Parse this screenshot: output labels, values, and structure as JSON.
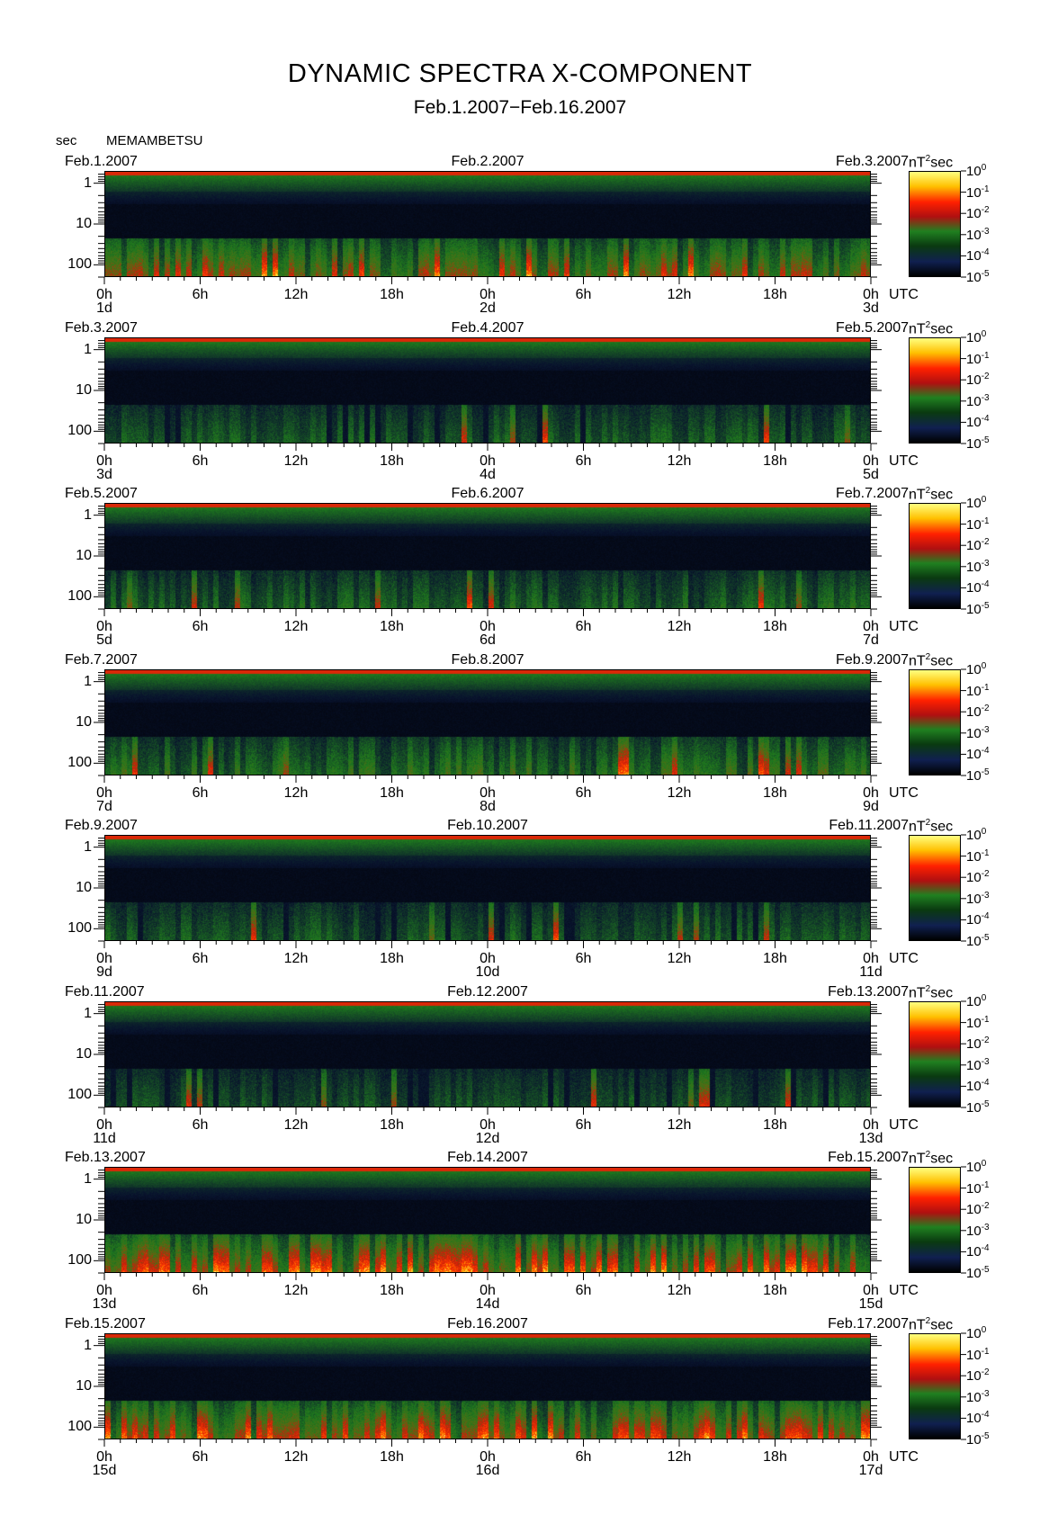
{
  "title": "DYNAMIC SPECTRA X-COMPONENT",
  "subtitle": "Feb.1.2007−Feb.16.2007",
  "station": "MEMAMBETSU",
  "y_unit": "sec",
  "colorbar_unit_main": "nT",
  "colorbar_unit_sup": "2",
  "colorbar_unit_tail": "sec",
  "time_unit": "UTC",
  "chart_data": {
    "type": "heatmap",
    "title": "DYNAMIC SPECTRA X-COMPONENT",
    "subtitle": "Feb.1.2007−Feb.16.2007",
    "ylabel": "sec",
    "y_scale": "log",
    "y_ticks": [
      "1",
      "10",
      "100"
    ],
    "x_ticks": [
      "0h",
      "6h",
      "12h",
      "18h",
      "0h",
      "6h",
      "12h",
      "18h",
      "0h"
    ],
    "colorbar": {
      "label": "nT²sec",
      "ticks": [
        "10^0",
        "10^-1",
        "10^-2",
        "10^-3",
        "10^-4",
        "10^-5"
      ],
      "colors": [
        "#ffff80",
        "#ffc000",
        "#ff2000",
        "#b01010",
        "#208020",
        "#0a3a10",
        "#102050",
        "#000000"
      ]
    },
    "panels": [
      {
        "dates": [
          "Feb.1.2007",
          "Feb.2.2007",
          "Feb.3.2007"
        ],
        "days": [
          "1d",
          "2d",
          "3d"
        ],
        "activity": 0.75
      },
      {
        "dates": [
          "Feb.3.2007",
          "Feb.4.2007",
          "Feb.5.2007"
        ],
        "days": [
          "3d",
          "4d",
          "5d"
        ],
        "activity": 0.35
      },
      {
        "dates": [
          "Feb.5.2007",
          "Feb.6.2007",
          "Feb.7.2007"
        ],
        "days": [
          "5d",
          "6d",
          "7d"
        ],
        "activity": 0.4
      },
      {
        "dates": [
          "Feb.7.2007",
          "Feb.8.2007",
          "Feb.9.2007"
        ],
        "days": [
          "7d",
          "8d",
          "9d"
        ],
        "activity": 0.5
      },
      {
        "dates": [
          "Feb.9.2007",
          "Feb.10.2007",
          "Feb.11.2007"
        ],
        "days": [
          "9d",
          "10d",
          "11d"
        ],
        "activity": 0.35
      },
      {
        "dates": [
          "Feb.11.2007",
          "Feb.12.2007",
          "Feb.13.2007"
        ],
        "days": [
          "11d",
          "12d",
          "13d"
        ],
        "activity": 0.3
      },
      {
        "dates": [
          "Feb.13.2007",
          "Feb.14.2007",
          "Feb.15.2007"
        ],
        "days": [
          "13d",
          "14d",
          "15d"
        ],
        "activity": 0.9
      },
      {
        "dates": [
          "Feb.15.2007",
          "Feb.16.2007",
          "Feb.17.2007"
        ],
        "days": [
          "15d",
          "16d",
          "17d"
        ],
        "activity": 0.85
      }
    ]
  }
}
